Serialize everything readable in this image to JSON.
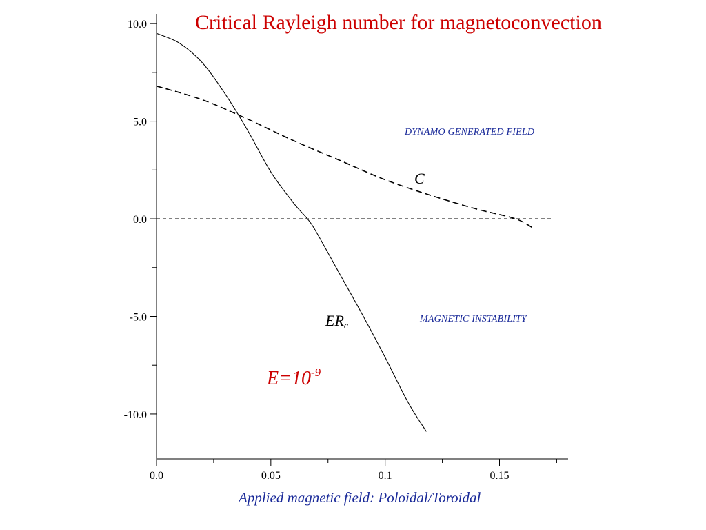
{
  "chart_data": {
    "type": "line",
    "title": "Critical Rayleigh number for magnetoconvection",
    "xlabel": "Applied magnetic field: Poloidal/Toroidal",
    "ylabel": "",
    "xlim": [
      0.0,
      0.18
    ],
    "ylim": [
      -12.3,
      10.5
    ],
    "x_ticks": [
      "0.0",
      "0.05",
      "0.1",
      "0.15"
    ],
    "x_tick_values": [
      0.0,
      0.05,
      0.1,
      0.15
    ],
    "y_ticks": [
      "10.0",
      "5.0",
      "0.0",
      "-5.0",
      "-10.0"
    ],
    "y_tick_values": [
      10.0,
      5.0,
      0.0,
      -5.0,
      -10.0
    ],
    "x_minor_step": 0.025,
    "y_minor_step": 2.5,
    "grid": false,
    "series": [
      {
        "name": "ER_c",
        "style": "solid",
        "x": [
          0.0,
          0.01,
          0.02,
          0.03,
          0.04,
          0.05,
          0.06,
          0.066,
          0.07,
          0.08,
          0.09,
          0.1,
          0.11,
          0.118
        ],
        "y": [
          9.5,
          9.0,
          8.0,
          6.4,
          4.5,
          2.4,
          0.8,
          0.0,
          -0.7,
          -2.8,
          -4.9,
          -7.1,
          -9.4,
          -10.9
        ]
      },
      {
        "name": "C",
        "style": "dashed",
        "x": [
          0.0,
          0.02,
          0.04,
          0.06,
          0.08,
          0.1,
          0.12,
          0.14,
          0.157,
          0.165
        ],
        "y": [
          6.8,
          6.1,
          5.1,
          4.0,
          3.0,
          2.0,
          1.2,
          0.5,
          0.0,
          -0.5
        ]
      },
      {
        "name": "zero",
        "style": "fine-dashed",
        "x": [
          0.0,
          0.173
        ],
        "y": [
          0.0,
          0.0
        ]
      }
    ],
    "annotations": {
      "region_top": "DYNAMO GENERATED FIELD",
      "region_bottom": "MAGNETIC INSTABILITY",
      "curve_c_label": "C",
      "curve_er_main": "ER",
      "curve_er_sub": "c",
      "e_base": "E=10",
      "e_exp": "-9"
    }
  },
  "colors": {
    "title": "#cc0000",
    "annotation": "#cc0000",
    "region_text": "#1a2a99",
    "axis_label": "#1a2a99",
    "lines": "#000000"
  }
}
